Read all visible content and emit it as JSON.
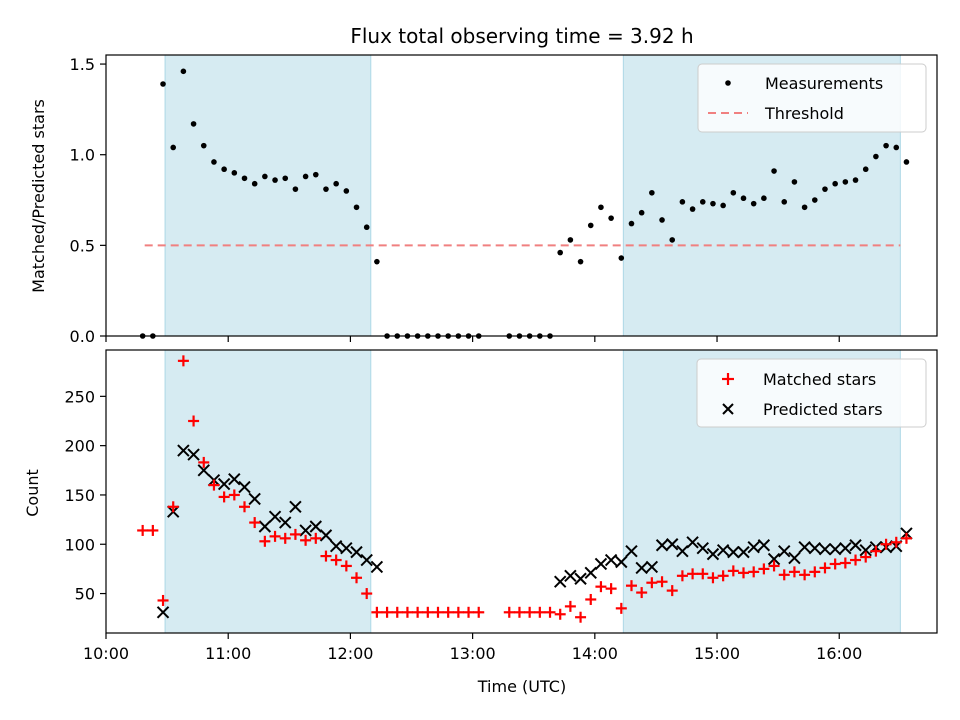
{
  "figure": {
    "title": "Flux total observing time = 3.92 h"
  },
  "chart_data": [
    {
      "type": "scatter",
      "title": "Flux total observing time = 3.92 h",
      "ylabel": "Matched/Predicted stars",
      "xlabel": "",
      "xlim": [
        "10:00",
        "16:48"
      ],
      "ylim": [
        0,
        1.55
      ],
      "yticks": [
        "0.0",
        "0.5",
        "1.0",
        "1.5"
      ],
      "grid": false,
      "legend": {
        "placement": "top-right",
        "entries": [
          "Measurements",
          "Threshold"
        ]
      },
      "shaded_intervals": [
        [
          "10:29",
          "12:10"
        ],
        [
          "14:14",
          "16:30"
        ]
      ],
      "threshold": {
        "name": "Threshold",
        "value": 0.5,
        "x_range": [
          "10:19",
          "16:30"
        ],
        "color": "#f08080"
      },
      "series": [
        {
          "name": "Measurements",
          "marker": "dot",
          "color": "#000000",
          "points": [
            [
              "10:18",
              0
            ],
            [
              "10:23",
              0
            ],
            [
              "10:28",
              1.39
            ],
            [
              "10:33",
              1.04
            ],
            [
              "10:38",
              1.46
            ],
            [
              "10:43",
              1.17
            ],
            [
              "10:48",
              1.05
            ],
            [
              "10:53",
              0.96
            ],
            [
              "10:58",
              0.92
            ],
            [
              "11:03",
              0.9
            ],
            [
              "11:08",
              0.87
            ],
            [
              "11:13",
              0.84
            ],
            [
              "11:18",
              0.88
            ],
            [
              "11:23",
              0.86
            ],
            [
              "11:28",
              0.87
            ],
            [
              "11:33",
              0.81
            ],
            [
              "11:38",
              0.88
            ],
            [
              "11:43",
              0.89
            ],
            [
              "11:48",
              0.81
            ],
            [
              "11:53",
              0.84
            ],
            [
              "11:58",
              0.8
            ],
            [
              "12:03",
              0.71
            ],
            [
              "12:08",
              0.6
            ],
            [
              "12:13",
              0.41
            ],
            [
              "12:18",
              0
            ],
            [
              "12:23",
              0
            ],
            [
              "12:28",
              0
            ],
            [
              "12:33",
              0
            ],
            [
              "12:38",
              0
            ],
            [
              "12:43",
              0
            ],
            [
              "12:48",
              0
            ],
            [
              "12:53",
              0
            ],
            [
              "12:58",
              0
            ],
            [
              "13:03",
              0
            ],
            [
              "13:18",
              0
            ],
            [
              "13:23",
              0
            ],
            [
              "13:28",
              0
            ],
            [
              "13:33",
              0
            ],
            [
              "13:38",
              0
            ],
            [
              "13:43",
              0.46
            ],
            [
              "13:48",
              0.53
            ],
            [
              "13:53",
              0.41
            ],
            [
              "13:58",
              0.61
            ],
            [
              "14:03",
              0.71
            ],
            [
              "14:08",
              0.65
            ],
            [
              "14:13",
              0.43
            ],
            [
              "14:18",
              0.62
            ],
            [
              "14:23",
              0.68
            ],
            [
              "14:28",
              0.79
            ],
            [
              "14:33",
              0.64
            ],
            [
              "14:38",
              0.53
            ],
            [
              "14:43",
              0.74
            ],
            [
              "14:48",
              0.7
            ],
            [
              "14:53",
              0.74
            ],
            [
              "14:58",
              0.73
            ],
            [
              "15:03",
              0.72
            ],
            [
              "15:08",
              0.79
            ],
            [
              "15:13",
              0.76
            ],
            [
              "15:18",
              0.73
            ],
            [
              "15:23",
              0.76
            ],
            [
              "15:28",
              0.91
            ],
            [
              "15:33",
              0.74
            ],
            [
              "15:38",
              0.85
            ],
            [
              "15:43",
              0.71
            ],
            [
              "15:48",
              0.75
            ],
            [
              "15:53",
              0.81
            ],
            [
              "15:58",
              0.84
            ],
            [
              "16:03",
              0.85
            ],
            [
              "16:08",
              0.86
            ],
            [
              "16:13",
              0.92
            ],
            [
              "16:18",
              0.99
            ],
            [
              "16:23",
              1.05
            ],
            [
              "16:28",
              1.04
            ],
            [
              "16:33",
              0.96
            ]
          ]
        }
      ]
    },
    {
      "type": "scatter",
      "title": "",
      "xlabel": "Time (UTC)",
      "ylabel": "Count",
      "xlim": [
        "10:00",
        "16:48"
      ],
      "xticks": [
        "10:00",
        "11:00",
        "12:00",
        "13:00",
        "14:00",
        "15:00",
        "16:00"
      ],
      "ylim": [
        10,
        297
      ],
      "yticks": [
        "50",
        "100",
        "150",
        "200",
        "250"
      ],
      "grid": false,
      "legend": {
        "placement": "top-right",
        "entries": [
          "Matched stars",
          "Predicted stars"
        ]
      },
      "shaded_intervals": [
        [
          "10:29",
          "12:10"
        ],
        [
          "14:14",
          "16:30"
        ]
      ],
      "series": [
        {
          "name": "Matched stars",
          "marker": "plus",
          "color": "#ff0000",
          "points": [
            [
              "10:18",
              114
            ],
            [
              "10:23",
              114
            ],
            [
              "10:28",
              43
            ],
            [
              "10:33",
              138
            ],
            [
              "10:38",
              286
            ],
            [
              "10:43",
              225
            ],
            [
              "10:48",
              183
            ],
            [
              "10:53",
              160
            ],
            [
              "10:58",
              148
            ],
            [
              "11:03",
              150
            ],
            [
              "11:08",
              138
            ],
            [
              "11:13",
              122
            ],
            [
              "11:18",
              103
            ],
            [
              "11:23",
              108
            ],
            [
              "11:28",
              106
            ],
            [
              "11:33",
              110
            ],
            [
              "11:38",
              104
            ],
            [
              "11:43",
              106
            ],
            [
              "11:48",
              88
            ],
            [
              "11:53",
              84
            ],
            [
              "11:58",
              78
            ],
            [
              "12:03",
              66
            ],
            [
              "12:08",
              50
            ],
            [
              "12:13",
              31
            ],
            [
              "12:18",
              31
            ],
            [
              "12:23",
              31
            ],
            [
              "12:28",
              31
            ],
            [
              "12:33",
              31
            ],
            [
              "12:38",
              31
            ],
            [
              "12:43",
              31
            ],
            [
              "12:48",
              31
            ],
            [
              "12:53",
              31
            ],
            [
              "12:58",
              31
            ],
            [
              "13:03",
              31
            ],
            [
              "13:18",
              31
            ],
            [
              "13:23",
              31
            ],
            [
              "13:28",
              31
            ],
            [
              "13:33",
              31
            ],
            [
              "13:38",
              31
            ],
            [
              "13:43",
              29
            ],
            [
              "13:48",
              37
            ],
            [
              "13:53",
              26
            ],
            [
              "13:58",
              44
            ],
            [
              "14:03",
              57
            ],
            [
              "14:08",
              55
            ],
            [
              "14:13",
              35
            ],
            [
              "14:18",
              58
            ],
            [
              "14:23",
              51
            ],
            [
              "14:28",
              61
            ],
            [
              "14:33",
              62
            ],
            [
              "14:38",
              53
            ],
            [
              "14:43",
              68
            ],
            [
              "14:48",
              70
            ],
            [
              "14:53",
              70
            ],
            [
              "14:58",
              66
            ],
            [
              "15:03",
              68
            ],
            [
              "15:08",
              73
            ],
            [
              "15:13",
              71
            ],
            [
              "15:18",
              72
            ],
            [
              "15:23",
              75
            ],
            [
              "15:28",
              78
            ],
            [
              "15:33",
              69
            ],
            [
              "15:38",
              72
            ],
            [
              "15:43",
              69
            ],
            [
              "15:48",
              72
            ],
            [
              "15:53",
              76
            ],
            [
              "15:58",
              80
            ],
            [
              "16:03",
              81
            ],
            [
              "16:08",
              84
            ],
            [
              "16:13",
              87
            ],
            [
              "16:18",
              93
            ],
            [
              "16:23",
              100
            ],
            [
              "16:28",
              102
            ],
            [
              "16:33",
              106
            ]
          ]
        },
        {
          "name": "Predicted stars",
          "marker": "x",
          "color": "#000000",
          "points": [
            [
              "10:28",
              31
            ],
            [
              "10:33",
              133
            ],
            [
              "10:38",
              195
            ],
            [
              "10:43",
              191
            ],
            [
              "10:48",
              175
            ],
            [
              "10:53",
              165
            ],
            [
              "10:58",
              161
            ],
            [
              "11:03",
              166
            ],
            [
              "11:08",
              158
            ],
            [
              "11:13",
              146
            ],
            [
              "11:18",
              118
            ],
            [
              "11:23",
              128
            ],
            [
              "11:28",
              122
            ],
            [
              "11:33",
              138
            ],
            [
              "11:38",
              114
            ],
            [
              "11:43",
              118
            ],
            [
              "11:48",
              109
            ],
            [
              "11:53",
              98
            ],
            [
              "11:58",
              96
            ],
            [
              "12:03",
              92
            ],
            [
              "12:08",
              84
            ],
            [
              "12:13",
              77
            ],
            [
              "13:43",
              62
            ],
            [
              "13:48",
              68
            ],
            [
              "13:53",
              65
            ],
            [
              "13:58",
              71
            ],
            [
              "14:03",
              80
            ],
            [
              "14:08",
              84
            ],
            [
              "14:13",
              82
            ],
            [
              "14:18",
              93
            ],
            [
              "14:23",
              76
            ],
            [
              "14:28",
              77
            ],
            [
              "14:33",
              99
            ],
            [
              "14:38",
              100
            ],
            [
              "14:43",
              93
            ],
            [
              "14:48",
              102
            ],
            [
              "14:53",
              96
            ],
            [
              "14:58",
              90
            ],
            [
              "15:03",
              94
            ],
            [
              "15:08",
              92
            ],
            [
              "15:13",
              92
            ],
            [
              "15:18",
              97
            ],
            [
              "15:23",
              99
            ],
            [
              "15:28",
              85
            ],
            [
              "15:33",
              93
            ],
            [
              "15:38",
              86
            ],
            [
              "15:43",
              97
            ],
            [
              "15:48",
              96
            ],
            [
              "15:53",
              95
            ],
            [
              "15:58",
              95
            ],
            [
              "16:03",
              96
            ],
            [
              "16:08",
              99
            ],
            [
              "16:13",
              94
            ],
            [
              "16:18",
              97
            ],
            [
              "16:23",
              97
            ],
            [
              "16:28",
              98
            ],
            [
              "16:33",
              111
            ]
          ]
        }
      ]
    }
  ],
  "style": {
    "shade_color": "#add8e6",
    "threshold_color": "#f08080"
  }
}
